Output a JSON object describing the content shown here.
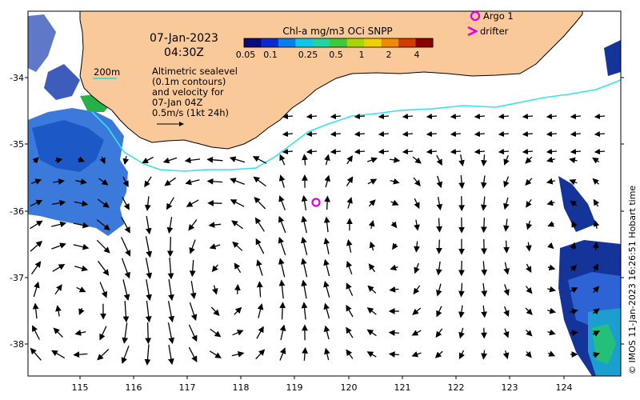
{
  "header": {
    "date": "07-Jan-2023",
    "time": "04:30Z"
  },
  "colorbar": {
    "title": "Chl-a mg/m3 OCi SNPP",
    "ticks": [
      "0.05",
      "0.1",
      "0.25",
      "0.5",
      "1",
      "2",
      "4"
    ],
    "colors": [
      "#0a0a78",
      "#0b2bd0",
      "#0a7cf0",
      "#11c7e8",
      "#22d4a0",
      "#40c83a",
      "#a6d60a",
      "#f0d000",
      "#f08a00",
      "#d23a00",
      "#8a0000"
    ]
  },
  "contour_legend": {
    "label": "200m",
    "color": "#35e3e6"
  },
  "annotation": {
    "lines": [
      "Altimetric sealevel",
      "(0.1m contours)",
      "and velocity for",
      "07-Jan 04Z",
      "0.5m/s (1kt 24h)"
    ]
  },
  "legend": {
    "argo_label": "Argo 1",
    "drifter_label": "drifter",
    "marker_color": "#e000e0"
  },
  "axes": {
    "x_ticks": [
      "115",
      "116",
      "117",
      "118",
      "119",
      "120",
      "121",
      "122",
      "123",
      "124"
    ],
    "y_ticks": [
      "-34",
      "-35",
      "-36",
      "-37",
      "-38"
    ]
  },
  "credit": "© IMOS 11-Jan-2023 16:26:51 Hobart time",
  "colors": {
    "land": "#f9c99a",
    "coast": "#000000",
    "ocean": "#ffffff"
  }
}
